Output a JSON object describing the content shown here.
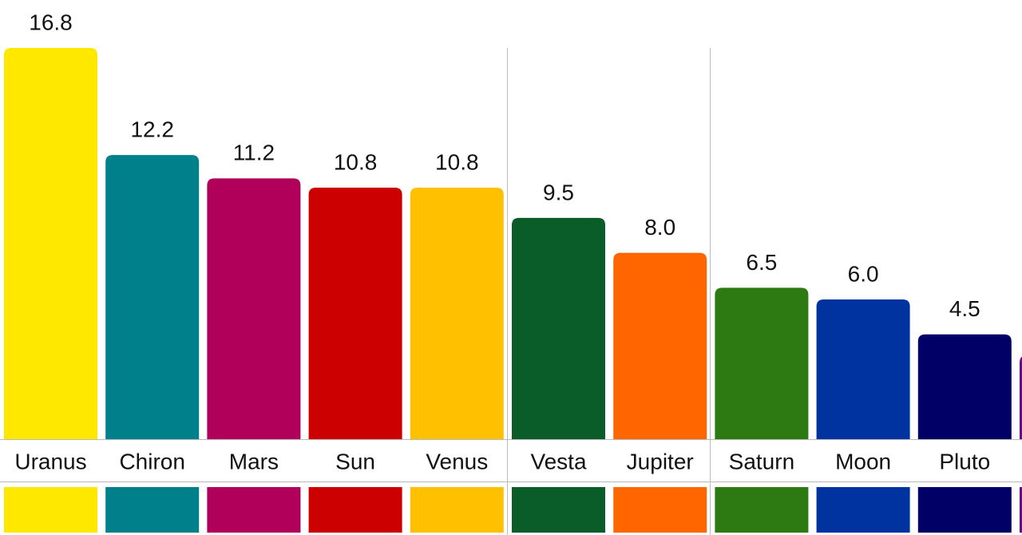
{
  "chart_data": {
    "type": "bar",
    "categories": [
      "Uranus",
      "Chiron",
      "Mars",
      "Sun",
      "Venus",
      "Vesta",
      "Jupiter",
      "Saturn",
      "Moon",
      "Pluto",
      null
    ],
    "values": [
      16.8,
      12.2,
      11.2,
      10.8,
      10.8,
      9.5,
      8.0,
      6.5,
      6.0,
      4.5,
      3.6
    ],
    "value_labels": [
      "16.8",
      "12.2",
      "11.2",
      "10.8",
      "10.8",
      "9.5",
      "8.0",
      "6.5",
      "6.0",
      "4.5",
      null
    ],
    "colors": [
      "#ffe800",
      "#00808a",
      "#b0005a",
      "#cc0000",
      "#ffc000",
      "#0a5c28",
      "#ff6600",
      "#2e7a12",
      "#0033a0",
      "#000066",
      "#6a0a8a"
    ],
    "ylim": [
      0,
      16.8
    ]
  }
}
